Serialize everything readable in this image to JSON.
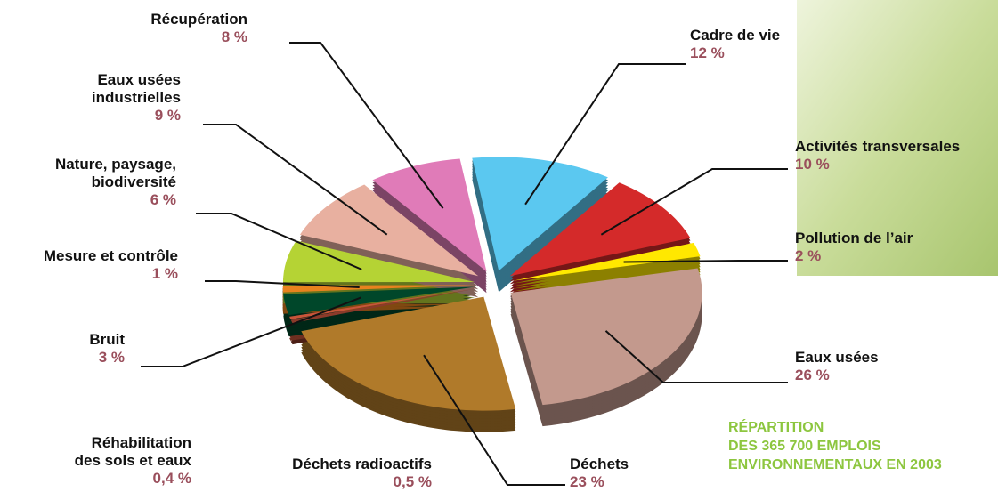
{
  "chart_data": {
    "type": "pie",
    "title": [
      "RÉPARTITION",
      "DES 365 700 EMPLOIS",
      "ENVIRONNEMENTAUX EN 2003"
    ],
    "categories": [
      "Cadre de vie",
      "Activités transversales",
      "Pollution de l’air",
      "Eaux usées",
      "Déchets",
      "Déchets radioactifs",
      "Réhabilitation\ndes sols et eaux",
      "Bruit",
      "Mesure et contrôle",
      "Nature, paysage,\nbiodiversité",
      "Eaux usées\nindustrielles",
      "Récupération"
    ],
    "values": [
      12,
      10,
      2,
      26,
      23,
      0.5,
      0.4,
      3,
      1,
      6,
      9,
      8
    ],
    "value_labels": [
      "12 %",
      "10 %",
      "2 %",
      "26 %",
      "23 %",
      "0,5 %",
      "0,4 %",
      "3 %",
      "1 %",
      "6 %",
      "9 %",
      "8 %"
    ],
    "colors": [
      "#5bc8f0",
      "#d42a2a",
      "#ffe800",
      "#c3998d",
      "#b07a2a",
      "#8b3a2a",
      "#c8553a",
      "#00472a",
      "#e8821e",
      "#b5d334",
      "#e8b0a0",
      "#e07bb8"
    ]
  }
}
